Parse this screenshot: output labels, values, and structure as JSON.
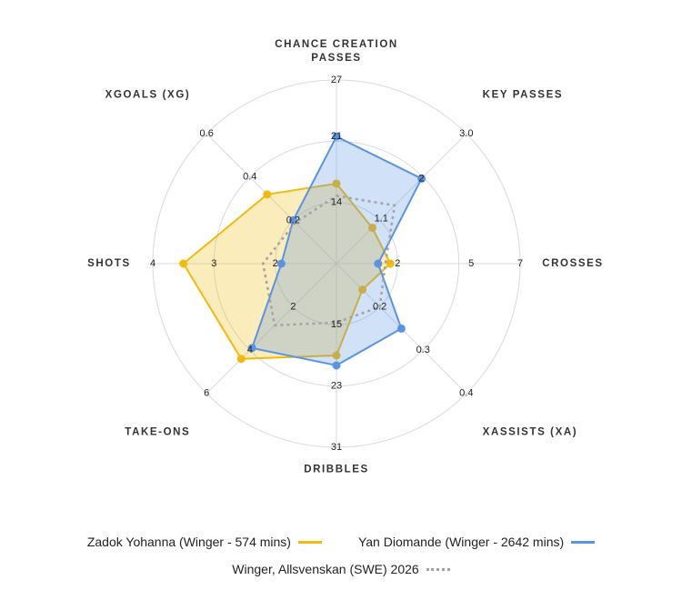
{
  "chart_data": {
    "type": "radar",
    "axes": [
      {
        "label": [
          "CHANCE CREATION",
          "PASSES"
        ],
        "lim": [
          7.5,
          27
        ],
        "ticks": [
          14,
          21,
          27
        ]
      },
      {
        "label": "KEY PASSES",
        "lim": [
          0.1,
          3.0
        ],
        "ticks": [
          1.1,
          2.0,
          {
            "value": 3.0,
            "label": "3.0"
          }
        ]
      },
      {
        "label": "CROSSES",
        "lim": [
          -0.5,
          7
        ],
        "ticks": [
          2,
          5,
          7
        ]
      },
      {
        "label": "XASSISTS (XA)",
        "lim": [
          0.1,
          0.4
        ],
        "ticks": [
          0.2,
          0.3,
          0.4
        ]
      },
      {
        "label": "DRIBBLES",
        "lim": [
          7,
          31
        ],
        "ticks": [
          15,
          23,
          31
        ]
      },
      {
        "label": "TAKE-ONS",
        "lim": [
          0,
          6
        ],
        "ticks": [
          2,
          4,
          6
        ]
      },
      {
        "label": "SHOTS",
        "lim": [
          1,
          4
        ],
        "ticks": [
          2,
          3,
          4
        ]
      },
      {
        "label": "XGOALS (XG)",
        "lim": [
          0,
          0.6
        ],
        "ticks": [
          0.2,
          0.4,
          0.6
        ]
      }
    ],
    "series": [
      {
        "name": "Zadok Yohanna (Winger - 574 mins)",
        "color": "#f2b90f",
        "line_style": "solid",
        "values": [
          16,
          0.9,
          1.7,
          0.16,
          19,
          4.4,
          3.5,
          0.32
        ]
      },
      {
        "name": "Yan Diomande (Winger - 2642 mins)",
        "color": "#5b93e3",
        "line_style": "solid",
        "values": [
          21,
          2.0,
          1.2,
          0.25,
          20.3,
          3.9,
          1.9,
          0.2
        ]
      },
      {
        "name": "Winger, Allsvenskan (SWE) 2026",
        "color": "#a3a3a3",
        "line_style": "dotted",
        "values": [
          14.7,
          1.4,
          1.5,
          0.2,
          14.7,
          2.85,
          2.2,
          0.19
        ]
      }
    ]
  }
}
